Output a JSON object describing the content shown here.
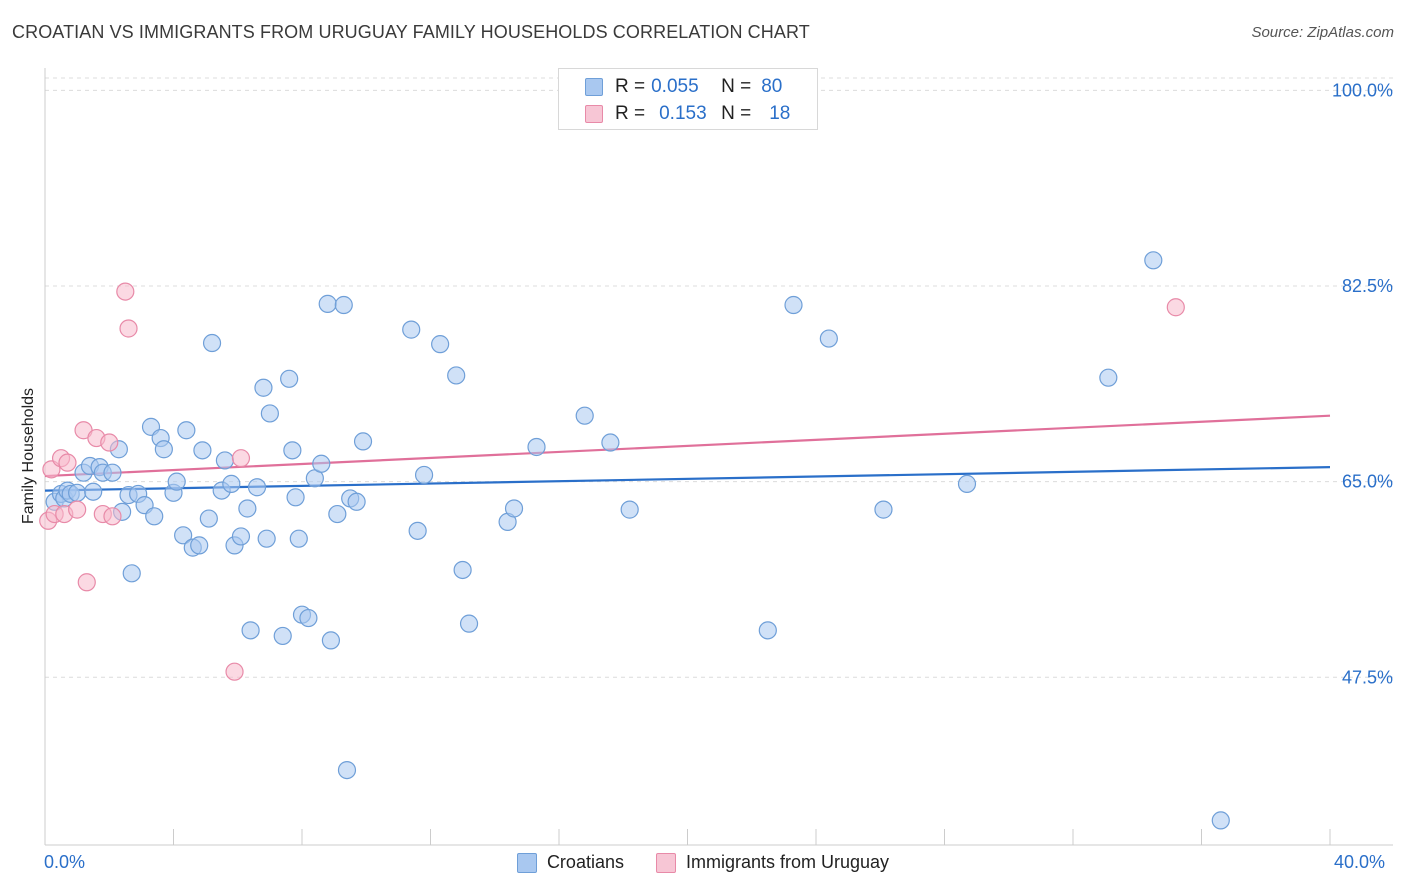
{
  "title": "CROATIAN VS IMMIGRANTS FROM URUGUAY FAMILY HOUSEHOLDS CORRELATION CHART",
  "source": "Source: ZipAtlas.com",
  "legend_top": {
    "rows": [
      {
        "r_label": "R =",
        "r_value": "0.055",
        "n_label": "N =",
        "n_value": "80"
      },
      {
        "r_label": "R =",
        "r_value": "0.153",
        "n_label": "N =",
        "n_value": "18"
      }
    ]
  },
  "chart_data": {
    "type": "scatter",
    "title": "CROATIAN VS IMMIGRANTS FROM URUGUAY FAMILY HOUSEHOLDS CORRELATION CHART",
    "xlabel": "",
    "ylabel": "Family Households",
    "xlim": [
      0,
      40
    ],
    "ylim": [
      32.5,
      102
    ],
    "x_tick_labels": [
      "0.0%",
      "40.0%"
    ],
    "y_ticks": [
      47.5,
      65.0,
      82.5,
      100.0
    ],
    "y_tick_labels": [
      "47.5%",
      "65.0%",
      "82.5%",
      "100.0%"
    ],
    "grid": "horizontal-dashed",
    "legend": "top-center",
    "colors": {
      "croatians_fill": "#a9c8f0",
      "croatians_stroke": "#6f9fd8",
      "croatians_line": "#2a6fc9",
      "uruguay_fill": "#f7b9cc",
      "uruguay_stroke": "#e88aa8",
      "uruguay_line": "#e0709a",
      "axis_text": "#2a6fc9"
    },
    "series": [
      {
        "name": "Croatians",
        "trend": {
          "x": [
            0,
            40
          ],
          "y": [
            64.2,
            66.3
          ]
        },
        "points": [
          [
            0.3,
            63.2
          ],
          [
            0.5,
            63.9
          ],
          [
            0.6,
            63.5
          ],
          [
            0.7,
            64.2
          ],
          [
            0.8,
            63.9
          ],
          [
            1.0,
            64.0
          ],
          [
            1.2,
            65.8
          ],
          [
            1.4,
            66.4
          ],
          [
            1.5,
            64.1
          ],
          [
            1.7,
            66.3
          ],
          [
            1.8,
            65.8
          ],
          [
            2.1,
            65.8
          ],
          [
            2.3,
            67.9
          ],
          [
            2.4,
            62.3
          ],
          [
            2.6,
            63.8
          ],
          [
            2.7,
            56.8
          ],
          [
            2.9,
            63.9
          ],
          [
            3.1,
            62.9
          ],
          [
            3.3,
            69.9
          ],
          [
            3.4,
            61.9
          ],
          [
            3.6,
            68.9
          ],
          [
            3.7,
            67.9
          ],
          [
            4.0,
            64.0
          ],
          [
            4.1,
            65.0
          ],
          [
            4.3,
            60.2
          ],
          [
            4.4,
            69.6
          ],
          [
            4.6,
            59.1
          ],
          [
            4.8,
            59.3
          ],
          [
            4.9,
            67.8
          ],
          [
            5.1,
            61.7
          ],
          [
            5.2,
            77.4
          ],
          [
            5.5,
            64.2
          ],
          [
            5.6,
            66.9
          ],
          [
            5.8,
            64.8
          ],
          [
            5.9,
            59.3
          ],
          [
            6.1,
            60.1
          ],
          [
            6.3,
            62.6
          ],
          [
            6.4,
            51.7
          ],
          [
            6.6,
            64.5
          ],
          [
            6.8,
            73.4
          ],
          [
            6.9,
            59.9
          ],
          [
            7.0,
            71.1
          ],
          [
            7.4,
            51.2
          ],
          [
            7.6,
            74.2
          ],
          [
            7.7,
            67.8
          ],
          [
            7.8,
            63.6
          ],
          [
            7.9,
            59.9
          ],
          [
            8.0,
            53.1
          ],
          [
            8.2,
            52.8
          ],
          [
            8.4,
            65.3
          ],
          [
            8.6,
            66.6
          ],
          [
            8.8,
            80.9
          ],
          [
            8.9,
            50.8
          ],
          [
            9.1,
            62.1
          ],
          [
            9.3,
            80.8
          ],
          [
            9.4,
            39.2
          ],
          [
            9.5,
            63.5
          ],
          [
            9.7,
            63.2
          ],
          [
            9.9,
            68.6
          ],
          [
            11.4,
            78.6
          ],
          [
            11.6,
            60.6
          ],
          [
            11.8,
            65.6
          ],
          [
            12.3,
            77.3
          ],
          [
            12.8,
            74.5
          ],
          [
            13.0,
            57.1
          ],
          [
            13.2,
            52.3
          ],
          [
            14.4,
            61.4
          ],
          [
            14.6,
            62.6
          ],
          [
            15.3,
            68.1
          ],
          [
            16.8,
            70.9
          ],
          [
            17.6,
            68.5
          ],
          [
            18.2,
            62.5
          ],
          [
            22.5,
            51.7
          ],
          [
            23.3,
            80.8
          ],
          [
            24.4,
            77.8
          ],
          [
            26.1,
            62.5
          ],
          [
            28.7,
            64.8
          ],
          [
            33.1,
            74.3
          ],
          [
            34.5,
            84.8
          ],
          [
            36.6,
            34.7
          ]
        ]
      },
      {
        "name": "Immigrants from Uruguay",
        "trend": {
          "x": [
            0,
            40
          ],
          "y": [
            65.5,
            70.9
          ]
        },
        "points": [
          [
            0.1,
            61.5
          ],
          [
            0.2,
            66.1
          ],
          [
            0.3,
            62.1
          ],
          [
            0.5,
            67.1
          ],
          [
            0.6,
            62.1
          ],
          [
            0.7,
            66.7
          ],
          [
            1.0,
            62.5
          ],
          [
            1.2,
            69.6
          ],
          [
            1.3,
            56.0
          ],
          [
            1.6,
            68.9
          ],
          [
            1.8,
            62.1
          ],
          [
            2.0,
            68.5
          ],
          [
            2.1,
            61.9
          ],
          [
            2.5,
            82.0
          ],
          [
            2.6,
            78.7
          ],
          [
            5.9,
            48.0
          ],
          [
            6.1,
            67.1
          ],
          [
            35.2,
            80.6
          ]
        ]
      }
    ]
  }
}
